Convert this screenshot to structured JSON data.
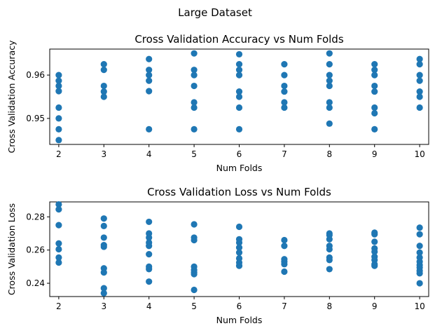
{
  "figure": {
    "suptitle": "Large Dataset"
  },
  "colors": {
    "point": "#1f77b4"
  },
  "chart_data": [
    {
      "type": "scatter",
      "title": "Cross Validation Accuracy vs Num Folds",
      "xlabel": "Num Folds",
      "ylabel": "Cross Validation Accuracy",
      "xlim": [
        1.8,
        10.2
      ],
      "ylim": [
        0.944,
        0.966
      ],
      "xticks": [
        2,
        3,
        4,
        5,
        6,
        7,
        8,
        9,
        10
      ],
      "yticks": [
        0.95,
        0.96
      ],
      "ytick_labels": [
        "0.95",
        "0.96"
      ],
      "grid": false,
      "series": [
        {
          "points": [
            [
              2,
              0.96
            ],
            [
              2,
              0.9587
            ],
            [
              2,
              0.9575
            ],
            [
              2,
              0.9563
            ],
            [
              2,
              0.9525
            ],
            [
              2,
              0.95
            ],
            [
              2,
              0.9475
            ],
            [
              2,
              0.945
            ],
            [
              3,
              0.9625
            ],
            [
              3,
              0.9612
            ],
            [
              3,
              0.9575
            ],
            [
              3,
              0.9562
            ],
            [
              3,
              0.955
            ],
            [
              4,
              0.9637
            ],
            [
              4,
              0.9612
            ],
            [
              4,
              0.96
            ],
            [
              4,
              0.9587
            ],
            [
              4,
              0.9563
            ],
            [
              4,
              0.9475
            ],
            [
              5,
              0.965
            ],
            [
              5,
              0.9612
            ],
            [
              5,
              0.96
            ],
            [
              5,
              0.9575
            ],
            [
              5,
              0.9537
            ],
            [
              5,
              0.9525
            ],
            [
              5,
              0.9475
            ],
            [
              6,
              0.9648
            ],
            [
              6,
              0.9625
            ],
            [
              6,
              0.9612
            ],
            [
              6,
              0.96
            ],
            [
              6,
              0.9562
            ],
            [
              6,
              0.955
            ],
            [
              6,
              0.9525
            ],
            [
              6,
              0.9475
            ],
            [
              7,
              0.9625
            ],
            [
              7,
              0.96
            ],
            [
              7,
              0.9575
            ],
            [
              7,
              0.9562
            ],
            [
              7,
              0.9537
            ],
            [
              7,
              0.9525
            ],
            [
              8,
              0.965
            ],
            [
              8,
              0.9625
            ],
            [
              8,
              0.96
            ],
            [
              8,
              0.9587
            ],
            [
              8,
              0.9575
            ],
            [
              8,
              0.9537
            ],
            [
              8,
              0.9525
            ],
            [
              8,
              0.9488
            ],
            [
              9,
              0.9625
            ],
            [
              9,
              0.9612
            ],
            [
              9,
              0.96
            ],
            [
              9,
              0.9575
            ],
            [
              9,
              0.9562
            ],
            [
              9,
              0.9525
            ],
            [
              9,
              0.9512
            ],
            [
              9,
              0.9475
            ],
            [
              10,
              0.9637
            ],
            [
              10,
              0.9625
            ],
            [
              10,
              0.96
            ],
            [
              10,
              0.9587
            ],
            [
              10,
              0.9562
            ],
            [
              10,
              0.955
            ],
            [
              10,
              0.9525
            ]
          ]
        }
      ]
    },
    {
      "type": "scatter",
      "title": "Cross Validation Loss vs Num Folds",
      "xlabel": "Num Folds",
      "ylabel": "Cross Validation Loss",
      "xlim": [
        1.8,
        10.2
      ],
      "ylim": [
        0.232,
        0.289
      ],
      "xticks": [
        2,
        3,
        4,
        5,
        6,
        7,
        8,
        9,
        10
      ],
      "yticks": [
        0.24,
        0.26,
        0.28
      ],
      "ytick_labels": [
        "0.24",
        "0.26",
        "0.28"
      ],
      "grid": false,
      "series": [
        {
          "points": [
            [
              2,
              0.2875
            ],
            [
              2,
              0.2845
            ],
            [
              2,
              0.275
            ],
            [
              2,
              0.264
            ],
            [
              2,
              0.2605
            ],
            [
              2,
              0.2555
            ],
            [
              2,
              0.2525
            ],
            [
              3,
              0.279
            ],
            [
              3,
              0.2745
            ],
            [
              3,
              0.2675
            ],
            [
              3,
              0.263
            ],
            [
              3,
              0.262
            ],
            [
              3,
              0.249
            ],
            [
              3,
              0.2465
            ],
            [
              3,
              0.237
            ],
            [
              3,
              0.234
            ],
            [
              4,
              0.277
            ],
            [
              4,
              0.27
            ],
            [
              4,
              0.2675
            ],
            [
              4,
              0.2645
            ],
            [
              4,
              0.2625
            ],
            [
              4,
              0.2575
            ],
            [
              4,
              0.25
            ],
            [
              4,
              0.2485
            ],
            [
              4,
              0.241
            ],
            [
              5,
              0.2755
            ],
            [
              5,
              0.2675
            ],
            [
              5,
              0.266
            ],
            [
              5,
              0.25
            ],
            [
              5,
              0.248
            ],
            [
              5,
              0.2465
            ],
            [
              5,
              0.2455
            ],
            [
              5,
              0.236
            ],
            [
              6,
              0.274
            ],
            [
              6,
              0.2665
            ],
            [
              6,
              0.2645
            ],
            [
              6,
              0.2615
            ],
            [
              6,
              0.2585
            ],
            [
              6,
              0.255
            ],
            [
              6,
              0.2525
            ],
            [
              6,
              0.2505
            ],
            [
              7,
              0.266
            ],
            [
              7,
              0.2625
            ],
            [
              7,
              0.2545
            ],
            [
              7,
              0.253
            ],
            [
              7,
              0.2515
            ],
            [
              7,
              0.247
            ],
            [
              8,
              0.27
            ],
            [
              8,
              0.269
            ],
            [
              8,
              0.2665
            ],
            [
              8,
              0.2625
            ],
            [
              8,
              0.2605
            ],
            [
              8,
              0.2555
            ],
            [
              8,
              0.254
            ],
            [
              8,
              0.2485
            ],
            [
              9,
              0.2705
            ],
            [
              9,
              0.2695
            ],
            [
              9,
              0.265
            ],
            [
              9,
              0.261
            ],
            [
              9,
              0.259
            ],
            [
              9,
              0.256
            ],
            [
              9,
              0.254
            ],
            [
              9,
              0.2515
            ],
            [
              9,
              0.2505
            ],
            [
              10,
              0.2735
            ],
            [
              10,
              0.2695
            ],
            [
              10,
              0.2625
            ],
            [
              10,
              0.2585
            ],
            [
              10,
              0.2555
            ],
            [
              10,
              0.253
            ],
            [
              10,
              0.251
            ],
            [
              10,
              0.2495
            ],
            [
              10,
              0.2475
            ],
            [
              10,
              0.246
            ],
            [
              10,
              0.24
            ]
          ]
        }
      ]
    }
  ]
}
